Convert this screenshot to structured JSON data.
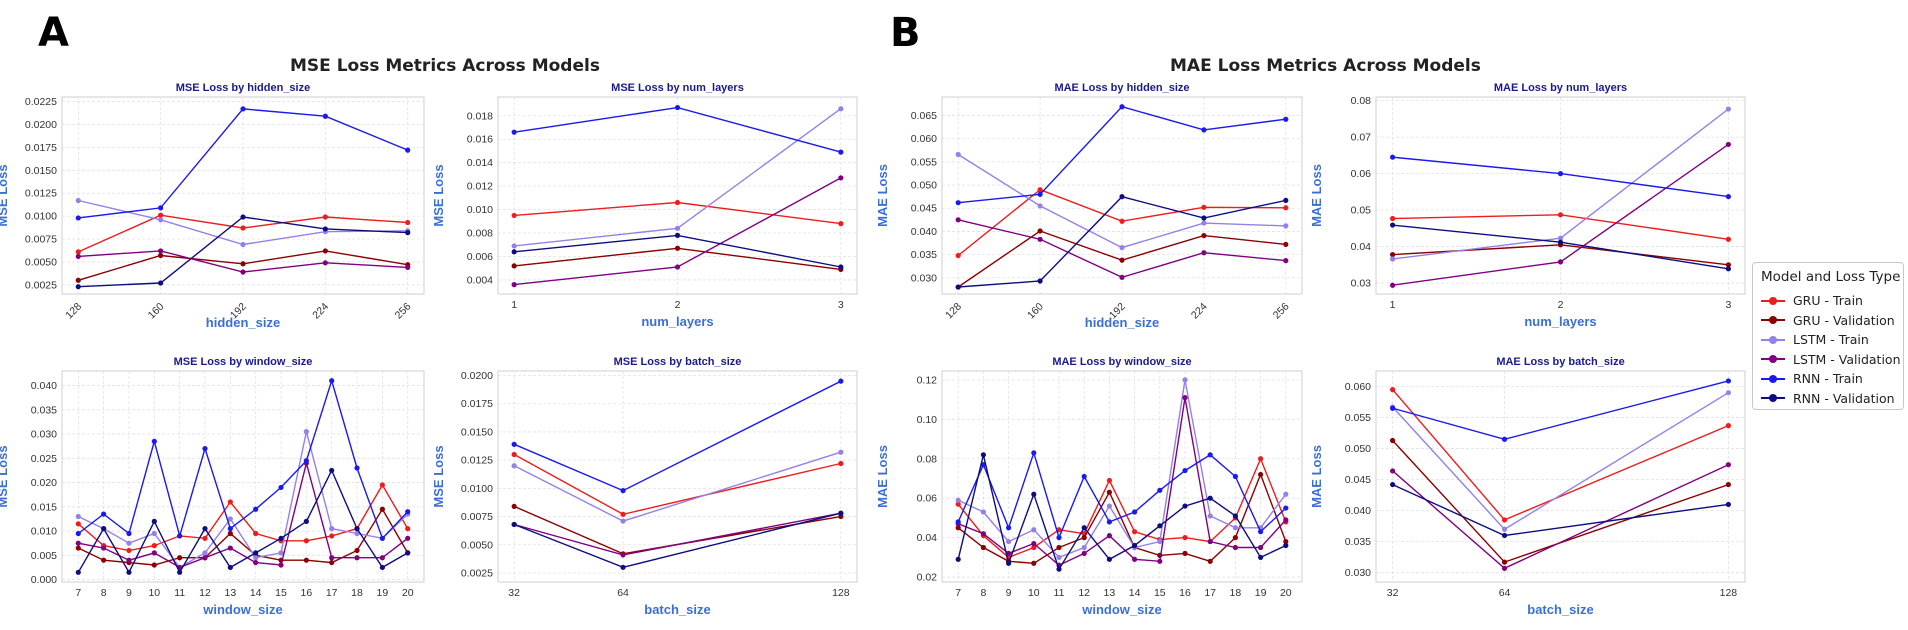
{
  "figure": {
    "panel_a_label": "A",
    "panel_b_label": "B",
    "group_a_title": "MSE Loss Metrics Across Models",
    "group_b_title": "MAE Loss Metrics Across Models"
  },
  "legend": {
    "title": "Model and Loss Type",
    "items": [
      {
        "label": "GRU - Train",
        "color": "#ee1c1c"
      },
      {
        "label": "GRU - Validation",
        "color": "#8b0000"
      },
      {
        "label": "LSTM - Train",
        "color": "#9580e8"
      },
      {
        "label": "LSTM - Validation",
        "color": "#800080"
      },
      {
        "label": "RNN - Train",
        "color": "#1a1aee"
      },
      {
        "label": "RNN - Validation",
        "color": "#0d0d80"
      }
    ]
  },
  "chart_data": [
    {
      "type": "line",
      "title": "MSE Loss by hidden_size",
      "xlabel": "hidden_size",
      "ylabel": "MSE Loss",
      "categories": [
        "128",
        "160",
        "192",
        "224",
        "256"
      ],
      "rotate_ticks": true,
      "ylim": [
        0.0015,
        0.023
      ],
      "yticks": [
        0.0025,
        0.005,
        0.0075,
        0.01,
        0.0125,
        0.015,
        0.0175,
        0.02,
        0.0225
      ],
      "ytick_labels": [
        "0.0025",
        "0.0050",
        "0.0075",
        "0.0100",
        "0.0125",
        "0.0150",
        "0.0175",
        "0.0200",
        "0.0225"
      ],
      "grid": true,
      "series": [
        {
          "name": "GRU - Train",
          "values": [
            0.0061,
            0.0101,
            0.0087,
            0.0099,
            0.0093
          ]
        },
        {
          "name": "GRU - Validation",
          "values": [
            0.003,
            0.0057,
            0.0048,
            0.0062,
            0.0047
          ]
        },
        {
          "name": "LSTM - Train",
          "values": [
            0.0117,
            0.0096,
            0.0069,
            0.0083,
            0.0084
          ]
        },
        {
          "name": "LSTM - Validation",
          "values": [
            0.0056,
            0.0062,
            0.0039,
            0.0049,
            0.0044
          ]
        },
        {
          "name": "RNN - Train",
          "values": [
            0.0098,
            0.0109,
            0.0217,
            0.0209,
            0.0172
          ]
        },
        {
          "name": "RNN - Validation",
          "values": [
            0.0023,
            0.0027,
            0.0099,
            0.0086,
            0.0082
          ]
        }
      ]
    },
    {
      "type": "line",
      "title": "MSE Loss by num_layers",
      "xlabel": "num_layers",
      "ylabel": "MSE Loss",
      "categories": [
        "1",
        "2",
        "3"
      ],
      "rotate_ticks": false,
      "ylim": [
        0.0028,
        0.0196
      ],
      "yticks": [
        0.004,
        0.006,
        0.008,
        0.01,
        0.012,
        0.014,
        0.016,
        0.018
      ],
      "ytick_labels": [
        "0.004",
        "0.006",
        "0.008",
        "0.010",
        "0.012",
        "0.014",
        "0.016",
        "0.018"
      ],
      "grid": true,
      "series": [
        {
          "name": "GRU - Train",
          "values": [
            0.0095,
            0.0106,
            0.0088
          ]
        },
        {
          "name": "GRU - Validation",
          "values": [
            0.0052,
            0.0067,
            0.0049
          ]
        },
        {
          "name": "LSTM - Train",
          "values": [
            0.0069,
            0.0084,
            0.0186
          ]
        },
        {
          "name": "LSTM - Validation",
          "values": [
            0.0036,
            0.0051,
            0.0127
          ]
        },
        {
          "name": "RNN - Train",
          "values": [
            0.0166,
            0.0187,
            0.0149
          ]
        },
        {
          "name": "RNN - Validation",
          "values": [
            0.0064,
            0.0078,
            0.0051
          ]
        }
      ]
    },
    {
      "type": "line",
      "title": "MSE Loss by window_size",
      "xlabel": "window_size",
      "ylabel": "MSE Loss",
      "categories": [
        "7",
        "8",
        "9",
        "10",
        "11",
        "12",
        "13",
        "14",
        "15",
        "16",
        "17",
        "18",
        "19",
        "20"
      ],
      "rotate_ticks": false,
      "ylim": [
        -0.0005,
        0.043
      ],
      "yticks": [
        0,
        0.005,
        0.01,
        0.015,
        0.02,
        0.025,
        0.03,
        0.035,
        0.04
      ],
      "ytick_labels": [
        "0.000",
        "0.005",
        "0.010",
        "0.015",
        "0.020",
        "0.025",
        "0.030",
        "0.035",
        "0.040"
      ],
      "grid": true,
      "series": [
        {
          "name": "GRU - Train",
          "values": [
            0.0115,
            0.007,
            0.006,
            0.007,
            0.009,
            0.0085,
            0.016,
            0.0095,
            0.008,
            0.008,
            0.009,
            0.0105,
            0.0195,
            0.0105
          ]
        },
        {
          "name": "GRU - Validation",
          "values": [
            0.0065,
            0.004,
            0.0035,
            0.003,
            0.0045,
            0.0045,
            0.0095,
            0.005,
            0.004,
            0.004,
            0.0035,
            0.006,
            0.0145,
            0.0055
          ]
        },
        {
          "name": "LSTM - Train",
          "values": [
            0.013,
            0.0105,
            0.0075,
            0.0095,
            0.0025,
            0.0055,
            0.0125,
            0.0045,
            0.0055,
            0.0305,
            0.0105,
            0.0095,
            0.0085,
            0.0135
          ]
        },
        {
          "name": "LSTM - Validation",
          "values": [
            0.0075,
            0.0065,
            0.004,
            0.0055,
            0.0025,
            0.0045,
            0.0065,
            0.0035,
            0.003,
            0.024,
            0.0045,
            0.0045,
            0.0045,
            0.0085
          ]
        },
        {
          "name": "RNN - Train",
          "values": [
            0.0095,
            0.0135,
            0.0095,
            0.0285,
            0.009,
            0.027,
            0.0105,
            0.0145,
            0.019,
            0.0245,
            0.041,
            0.023,
            0.0085,
            0.014
          ]
        },
        {
          "name": "RNN - Validation",
          "values": [
            0.0015,
            0.0105,
            0.0015,
            0.012,
            0.0015,
            0.0105,
            0.0025,
            0.0055,
            0.0085,
            0.012,
            0.0225,
            0.0105,
            0.0025,
            0.0055
          ]
        }
      ]
    },
    {
      "type": "line",
      "title": "MSE Loss by batch_size",
      "xlabel": "batch_size",
      "ylabel": "MSE Loss",
      "categories": [
        "32",
        "64",
        "128"
      ],
      "x_values": [
        32,
        64,
        128
      ],
      "rotate_ticks": false,
      "ylim": [
        0.0017,
        0.0204
      ],
      "yticks": [
        0.0025,
        0.005,
        0.0075,
        0.01,
        0.0125,
        0.015,
        0.0175,
        0.02
      ],
      "ytick_labels": [
        "0.0025",
        "0.0050",
        "0.0075",
        "0.0100",
        "0.0125",
        "0.0150",
        "0.0175",
        "0.0200"
      ],
      "grid": true,
      "series": [
        {
          "name": "GRU - Train",
          "values": [
            0.013,
            0.0077,
            0.0122
          ]
        },
        {
          "name": "GRU - Validation",
          "values": [
            0.0084,
            0.0042,
            0.0075
          ]
        },
        {
          "name": "LSTM - Train",
          "values": [
            0.012,
            0.0071,
            0.0132
          ]
        },
        {
          "name": "LSTM - Validation",
          "values": [
            0.0068,
            0.0041,
            0.0078
          ]
        },
        {
          "name": "RNN - Train",
          "values": [
            0.0139,
            0.0098,
            0.0195
          ]
        },
        {
          "name": "RNN - Validation",
          "values": [
            0.0068,
            0.003,
            0.0078
          ]
        }
      ]
    },
    {
      "type": "line",
      "title": "MAE Loss by hidden_size",
      "xlabel": "hidden_size",
      "ylabel": "MAE Loss",
      "categories": [
        "128",
        "160",
        "192",
        "224",
        "256"
      ],
      "rotate_ticks": true,
      "ylim": [
        0.0265,
        0.069
      ],
      "yticks": [
        0.03,
        0.035,
        0.04,
        0.045,
        0.05,
        0.055,
        0.06,
        0.065
      ],
      "ytick_labels": [
        "0.030",
        "0.035",
        "0.040",
        "0.045",
        "0.050",
        "0.055",
        "0.060",
        "0.065"
      ],
      "grid": true,
      "series": [
        {
          "name": "GRU - Train",
          "values": [
            0.0348,
            0.049,
            0.0422,
            0.0452,
            0.0451
          ]
        },
        {
          "name": "GRU - Validation",
          "values": [
            0.028,
            0.0401,
            0.0338,
            0.0391,
            0.0372
          ]
        },
        {
          "name": "LSTM - Train",
          "values": [
            0.0566,
            0.0455,
            0.0365,
            0.0418,
            0.0412
          ]
        },
        {
          "name": "LSTM - Validation",
          "values": [
            0.0425,
            0.0383,
            0.0301,
            0.0354,
            0.0337
          ]
        },
        {
          "name": "RNN - Train",
          "values": [
            0.0462,
            0.048,
            0.0669,
            0.0619,
            0.0642
          ]
        },
        {
          "name": "RNN - Validation",
          "values": [
            0.028,
            0.0293,
            0.0475,
            0.0429,
            0.0467
          ]
        }
      ]
    },
    {
      "type": "line",
      "title": "MAE Loss by num_layers",
      "xlabel": "num_layers",
      "ylabel": "MAE Loss",
      "categories": [
        "1",
        "2",
        "3"
      ],
      "rotate_ticks": false,
      "ylim": [
        0.027,
        0.081
      ],
      "yticks": [
        0.03,
        0.04,
        0.05,
        0.06,
        0.07,
        0.08
      ],
      "ytick_labels": [
        "0.03",
        "0.04",
        "0.05",
        "0.06",
        "0.07",
        "0.08"
      ],
      "grid": true,
      "series": [
        {
          "name": "GRU - Train",
          "values": [
            0.0477,
            0.0487,
            0.042
          ]
        },
        {
          "name": "GRU - Validation",
          "values": [
            0.0378,
            0.0405,
            0.035
          ]
        },
        {
          "name": "LSTM - Train",
          "values": [
            0.0366,
            0.0423,
            0.0777
          ]
        },
        {
          "name": "LSTM - Validation",
          "values": [
            0.0294,
            0.0358,
            0.068
          ]
        },
        {
          "name": "RNN - Train",
          "values": [
            0.0645,
            0.06,
            0.0537
          ]
        },
        {
          "name": "RNN - Validation",
          "values": [
            0.0459,
            0.0412,
            0.0339
          ]
        }
      ]
    },
    {
      "type": "line",
      "title": "MAE Loss by window_size",
      "xlabel": "window_size",
      "ylabel": "MAE Loss",
      "categories": [
        "7",
        "8",
        "9",
        "10",
        "11",
        "12",
        "13",
        "14",
        "15",
        "16",
        "17",
        "18",
        "19",
        "20"
      ],
      "rotate_ticks": false,
      "ylim": [
        0.0175,
        0.1245
      ],
      "yticks": [
        0.02,
        0.04,
        0.06,
        0.08,
        0.1,
        0.12
      ],
      "ytick_labels": [
        "0.02",
        "0.04",
        "0.06",
        "0.08",
        "0.10",
        "0.12"
      ],
      "grid": true,
      "series": [
        {
          "name": "GRU - Train",
          "values": [
            0.057,
            0.041,
            0.03,
            0.035,
            0.044,
            0.042,
            0.069,
            0.043,
            0.039,
            0.04,
            0.038,
            0.05,
            0.08,
            0.048
          ]
        },
        {
          "name": "GRU - Validation",
          "values": [
            0.045,
            0.035,
            0.028,
            0.027,
            0.035,
            0.04,
            0.063,
            0.035,
            0.031,
            0.032,
            0.028,
            0.04,
            0.072,
            0.038
          ]
        },
        {
          "name": "LSTM - Train",
          "values": [
            0.059,
            0.053,
            0.038,
            0.044,
            0.03,
            0.035,
            0.056,
            0.035,
            0.038,
            0.12,
            0.051,
            0.045,
            0.045,
            0.062
          ]
        },
        {
          "name": "LSTM - Validation",
          "values": [
            0.047,
            0.042,
            0.032,
            0.037,
            0.026,
            0.032,
            0.041,
            0.029,
            0.028,
            0.111,
            0.038,
            0.035,
            0.035,
            0.049
          ]
        },
        {
          "name": "RNN - Train",
          "values": [
            0.048,
            0.077,
            0.045,
            0.083,
            0.04,
            0.071,
            0.048,
            0.053,
            0.064,
            0.074,
            0.082,
            0.071,
            0.043,
            0.055
          ]
        },
        {
          "name": "RNN - Validation",
          "values": [
            0.029,
            0.082,
            0.027,
            0.062,
            0.024,
            0.045,
            0.029,
            0.036,
            0.046,
            0.056,
            0.06,
            0.051,
            0.03,
            0.036
          ]
        }
      ]
    },
    {
      "type": "line",
      "title": "MAE Loss by batch_size",
      "xlabel": "batch_size",
      "ylabel": "MAE Loss",
      "categories": [
        "32",
        "64",
        "128"
      ],
      "x_values": [
        32,
        64,
        128
      ],
      "rotate_ticks": false,
      "ylim": [
        0.0285,
        0.0625
      ],
      "yticks": [
        0.03,
        0.035,
        0.04,
        0.045,
        0.05,
        0.055,
        0.06
      ],
      "ytick_labels": [
        "0.030",
        "0.035",
        "0.040",
        "0.045",
        "0.050",
        "0.055",
        "0.060"
      ],
      "grid": true,
      "series": [
        {
          "name": "GRU - Train",
          "values": [
            0.0595,
            0.0385,
            0.0537
          ]
        },
        {
          "name": "GRU - Validation",
          "values": [
            0.0513,
            0.0317,
            0.0442
          ]
        },
        {
          "name": "LSTM - Train",
          "values": [
            0.0567,
            0.037,
            0.059
          ]
        },
        {
          "name": "LSTM - Validation",
          "values": [
            0.0464,
            0.0307,
            0.0474
          ]
        },
        {
          "name": "RNN - Train",
          "values": [
            0.0565,
            0.0515,
            0.0609
          ]
        },
        {
          "name": "RNN - Validation",
          "values": [
            0.0442,
            0.036,
            0.041
          ]
        }
      ]
    }
  ]
}
